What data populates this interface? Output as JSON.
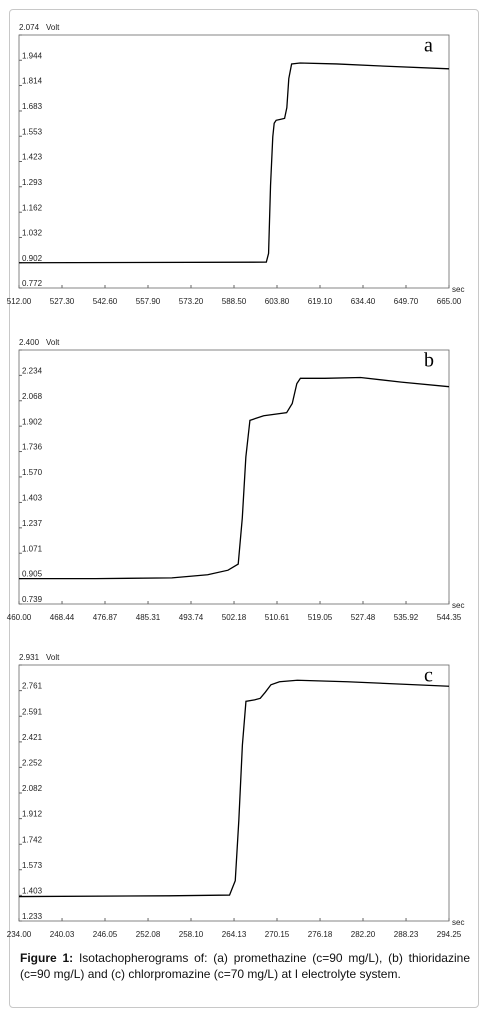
{
  "chart_data": [
    {
      "type": "line",
      "annotation": "a",
      "y_label": "Volt",
      "x_label": "sec",
      "color": "#000000",
      "x": [
        512,
        600,
        600.8,
        601.5,
        602.3,
        602.8,
        603.5,
        605,
        606.5,
        607.3,
        608,
        609,
        612,
        625,
        640,
        665
      ],
      "values": [
        0.902,
        0.905,
        0.95,
        1.3,
        1.55,
        1.62,
        1.635,
        1.64,
        1.645,
        1.7,
        1.85,
        1.925,
        1.93,
        1.925,
        1.915,
        1.9
      ],
      "xlim": [
        512,
        665
      ],
      "ylim": [
        0.772,
        2.074
      ],
      "yticks": [
        0.772,
        0.902,
        1.032,
        1.162,
        1.293,
        1.423,
        1.553,
        1.683,
        1.814,
        1.944,
        2.074
      ],
      "xticks": [
        {
          "value": 512,
          "label": "512.00"
        },
        {
          "value": 527.3,
          "label": "527.30"
        },
        {
          "value": 542.6,
          "label": "542.60"
        },
        {
          "value": 557.9,
          "label": "557.90"
        },
        {
          "value": 573.2,
          "label": "573.20"
        },
        {
          "value": 588.5,
          "label": "588.50"
        },
        {
          "value": 603.8,
          "label": "603.80"
        },
        {
          "value": 619.1,
          "label": "619.10"
        },
        {
          "value": 634.4,
          "label": "634.40"
        },
        {
          "value": 649.7,
          "label": "649.70"
        },
        {
          "value": 665,
          "label": "665.00"
        }
      ]
    },
    {
      "type": "line",
      "annotation": "b",
      "y_label": "Volt",
      "x_label": "sec",
      "color": "#000000",
      "x": [
        460,
        475,
        490,
        497,
        501,
        503,
        503.8,
        504.5,
        505.3,
        508,
        512.5,
        513.6,
        514.5,
        515.2,
        520,
        527,
        535,
        544.35
      ],
      "values": [
        0.905,
        0.905,
        0.91,
        0.93,
        0.96,
        1.0,
        1.3,
        1.7,
        1.94,
        1.97,
        1.99,
        2.05,
        2.18,
        2.215,
        2.215,
        2.22,
        2.19,
        2.16
      ],
      "xlim": [
        460,
        544.35
      ],
      "ylim": [
        0.739,
        2.4
      ],
      "yticks": [
        0.739,
        0.905,
        1.071,
        1.237,
        1.403,
        {
          "value": 1.57,
          "label": "1.570"
        },
        1.736,
        1.902,
        2.068,
        2.234,
        {
          "value": 2.4,
          "label": "2.400"
        }
      ],
      "xticks": [
        {
          "value": 460,
          "label": "460.00"
        },
        468.44,
        476.87,
        485.31,
        493.74,
        502.18,
        510.61,
        519.05,
        527.48,
        535.92,
        544.35
      ]
    },
    {
      "type": "line",
      "annotation": "c",
      "y_label": "Volt",
      "x_label": "sec",
      "color": "#000000",
      "x": [
        234,
        255,
        263.5,
        264.3,
        264.8,
        265.3,
        265.8,
        267,
        267.8,
        268.5,
        269.3,
        270.5,
        273,
        280,
        294.25
      ],
      "values": [
        1.395,
        1.4,
        1.405,
        1.5,
        1.9,
        2.4,
        2.69,
        2.7,
        2.71,
        2.75,
        2.8,
        2.82,
        2.83,
        2.82,
        2.79
      ],
      "xlim": [
        234,
        294.25
      ],
      "ylim": [
        1.233,
        2.931
      ],
      "yticks": [
        1.233,
        1.403,
        1.573,
        1.742,
        1.912,
        2.082,
        2.252,
        2.421,
        2.591,
        2.761,
        2.931
      ],
      "xticks": [
        {
          "value": 234,
          "label": "234.00"
        },
        240.03,
        246.05,
        252.08,
        {
          "value": 258.1,
          "label": "258.10"
        },
        264.13,
        270.15,
        276.18,
        {
          "value": 282.2,
          "label": "282.20"
        },
        288.23,
        294.25
      ]
    }
  ],
  "caption_label": "Figure 1:",
  "caption_text": "Isotachopherograms of: (a) promethazine (c=90 mg/L), (b) thioridazine (c=90 mg/L) and (c) chlorpromazine (c=70 mg/L) at I electrolyte system."
}
